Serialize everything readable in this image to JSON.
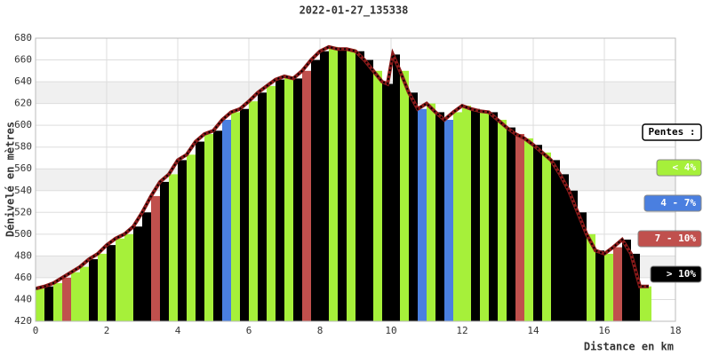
{
  "chart_data": {
    "type": "elevation-profile",
    "title": "2022-01-27_135338",
    "x_label": "Distance en km",
    "y_label": "Dénivelé en mètres",
    "x": [
      0,
      0.25,
      0.5,
      0.75,
      1,
      1.25,
      1.5,
      1.75,
      2,
      2.25,
      2.5,
      2.75,
      3,
      3.25,
      3.5,
      3.75,
      4,
      4.25,
      4.5,
      4.75,
      5,
      5.25,
      5.5,
      5.75,
      6,
      6.25,
      6.5,
      6.75,
      7,
      7.25,
      7.5,
      7.75,
      8,
      8.25,
      8.5,
      8.75,
      9,
      9.25,
      9.5,
      9.75,
      9.9,
      10.05,
      10.25,
      10.5,
      10.75,
      11,
      11.25,
      11.5,
      11.75,
      12,
      12.25,
      12.5,
      12.75,
      13,
      13.25,
      13.5,
      13.75,
      14,
      14.25,
      14.5,
      14.75,
      15,
      15.25,
      15.5,
      15.75,
      16,
      16.25,
      16.5,
      16.75,
      17,
      17.25
    ],
    "values": [
      450,
      452,
      455,
      460,
      465,
      470,
      477,
      482,
      490,
      496,
      500,
      507,
      520,
      535,
      548,
      555,
      568,
      573,
      585,
      592,
      595,
      605,
      612,
      615,
      622,
      630,
      636,
      642,
      645,
      643,
      650,
      660,
      668,
      672,
      670,
      670,
      668,
      660,
      650,
      640,
      638,
      665,
      650,
      630,
      615,
      620,
      612,
      605,
      612,
      618,
      615,
      613,
      612,
      605,
      598,
      592,
      588,
      582,
      575,
      568,
      555,
      540,
      520,
      500,
      485,
      482,
      488,
      495,
      482,
      452,
      452
    ],
    "colors": [
      "#a6f03a",
      "#000000",
      "#a6f03a",
      "#c0504d",
      "#a6f03a",
      "#a6f03a",
      "#000000",
      "#a6f03a",
      "#000000",
      "#a6f03a",
      "#a6f03a",
      "#000000",
      "#000000",
      "#c0504d",
      "#000000",
      "#a6f03a",
      "#000000",
      "#a6f03a",
      "#000000",
      "#a6f03a",
      "#000000",
      "#4a7fe0",
      "#a6f03a",
      "#000000",
      "#a6f03a",
      "#000000",
      "#a6f03a",
      "#000000",
      "#a6f03a",
      "#000000",
      "#c0504d",
      "#000000",
      "#000000",
      "#a6f03a",
      "#000000",
      "#a6f03a",
      "#000000",
      "#000000",
      "#a6f03a",
      "#000000",
      "#000000",
      "#000000",
      "#a6f03a",
      "#000000",
      "#4a7fe0",
      "#a6f03a",
      "#000000",
      "#4a7fe0",
      "#a6f03a",
      "#a6f03a",
      "#000000",
      "#a6f03a",
      "#000000",
      "#a6f03a",
      "#000000",
      "#c0504d",
      "#a6f03a",
      "#000000",
      "#a6f03a",
      "#000000",
      "#000000",
      "#000000",
      "#000000",
      "#a6f03a",
      "#000000",
      "#a6f03a",
      "#c0504d",
      "#000000",
      "#000000",
      "#a6f03a",
      "#a6f03a"
    ],
    "line_color": "#8b1a1a",
    "xlim": [
      0,
      18
    ],
    "xticks": [
      0,
      2,
      4,
      6,
      8,
      10,
      12,
      14,
      16,
      18
    ],
    "ylim": [
      420,
      680
    ],
    "yticks": [
      420,
      440,
      460,
      480,
      500,
      520,
      540,
      560,
      580,
      600,
      620,
      640,
      660,
      680
    ],
    "grid": true,
    "legend": {
      "title": "Pentes :",
      "items": [
        {
          "label": "< 4%",
          "color": "#a6f03a"
        },
        {
          "label": "4 - 7%",
          "color": "#4a7fe0"
        },
        {
          "label": "7 - 10%",
          "color": "#c0504d"
        },
        {
          "label": "> 10%",
          "color": "#000000"
        }
      ]
    }
  }
}
